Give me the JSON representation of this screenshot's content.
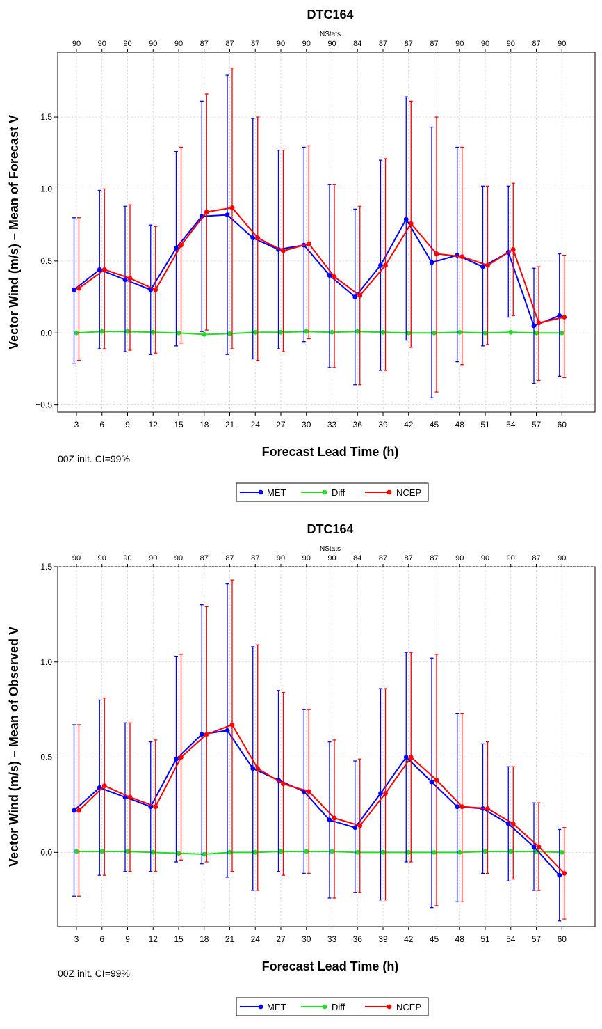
{
  "chart_data": [
    {
      "type": "line",
      "title": "DTC164",
      "xlabel": "Forecast Lead Time (h)",
      "ylabel": "Vector Wind (m/s) – Mean of Forecast V",
      "top_axis_label": "NStats",
      "annotation": "00Z init.  CI=99%",
      "x": [
        3,
        6,
        9,
        12,
        15,
        18,
        21,
        24,
        27,
        30,
        33,
        36,
        39,
        42,
        45,
        48,
        51,
        54,
        57,
        60
      ],
      "nstats": [
        90,
        90,
        90,
        90,
        90,
        87,
        87,
        87,
        90,
        90,
        90,
        84,
        87,
        87,
        87,
        90,
        90,
        90,
        87,
        90
      ],
      "ylim": [
        -0.55,
        1.95
      ],
      "yticks": [
        -0.5,
        0.0,
        0.5,
        1.0,
        1.5
      ],
      "ytick_labels": [
        "−0.5",
        "0.0",
        "0.5",
        "1.0",
        "1.5"
      ],
      "grid": true,
      "legend_position": "bottom-center",
      "series": [
        {
          "name": "MET",
          "color": "#0000ff",
          "values": [
            0.3,
            0.44,
            0.37,
            0.3,
            0.59,
            0.81,
            0.82,
            0.66,
            0.58,
            0.61,
            0.4,
            0.25,
            0.47,
            0.79,
            0.49,
            0.54,
            0.46,
            0.56,
            0.05,
            0.12
          ],
          "lower": [
            -0.21,
            -0.11,
            -0.13,
            -0.15,
            -0.09,
            0.01,
            -0.15,
            -0.18,
            -0.11,
            -0.06,
            -0.24,
            -0.36,
            -0.26,
            -0.05,
            -0.45,
            -0.2,
            -0.09,
            0.11,
            -0.35,
            -0.3
          ],
          "upper": [
            0.8,
            0.99,
            0.88,
            0.75,
            1.26,
            1.61,
            1.79,
            1.49,
            1.27,
            1.29,
            1.03,
            0.86,
            1.2,
            1.64,
            1.43,
            1.29,
            1.02,
            1.02,
            0.45,
            0.55
          ]
        },
        {
          "name": "Diff",
          "color": "#22dd22",
          "values": [
            0.0,
            0.01,
            0.01,
            0.005,
            0.0,
            -0.01,
            -0.005,
            0.005,
            0.005,
            0.01,
            0.005,
            0.01,
            0.005,
            0.0,
            0.0,
            0.005,
            0.0,
            0.005,
            0.0,
            0.0
          ]
        },
        {
          "name": "NCEP",
          "color": "#ff0000",
          "values": [
            0.31,
            0.44,
            0.38,
            0.3,
            0.61,
            0.84,
            0.87,
            0.66,
            0.57,
            0.62,
            0.39,
            0.26,
            0.47,
            0.76,
            0.55,
            0.53,
            0.47,
            0.58,
            0.07,
            0.11
          ],
          "lower": [
            -0.19,
            -0.11,
            -0.12,
            -0.14,
            -0.07,
            0.02,
            -0.11,
            -0.19,
            -0.13,
            -0.04,
            -0.24,
            -0.36,
            -0.26,
            -0.1,
            -0.41,
            -0.22,
            -0.08,
            0.12,
            -0.33,
            -0.31
          ],
          "upper": [
            0.8,
            1.0,
            0.89,
            0.74,
            1.29,
            1.66,
            1.84,
            1.5,
            1.27,
            1.3,
            1.03,
            0.88,
            1.21,
            1.61,
            1.5,
            1.29,
            1.02,
            1.04,
            0.46,
            0.54
          ]
        }
      ]
    },
    {
      "type": "line",
      "title": "DTC164",
      "xlabel": "Forecast Lead Time (h)",
      "ylabel": "Vector Wind (m/s) – Mean of Observed V",
      "top_axis_label": "NStats",
      "annotation": "00Z init.  CI=99%",
      "x": [
        3,
        6,
        9,
        12,
        15,
        18,
        21,
        24,
        27,
        30,
        33,
        36,
        39,
        42,
        45,
        48,
        51,
        54,
        57,
        60
      ],
      "nstats": [
        90,
        90,
        90,
        90,
        90,
        87,
        87,
        87,
        90,
        90,
        90,
        84,
        87,
        87,
        87,
        90,
        90,
        90,
        87,
        90
      ],
      "ylim": [
        -0.39,
        1.5
      ],
      "yticks": [
        0.0,
        0.5,
        1.0,
        1.5
      ],
      "ytick_labels": [
        "0.0",
        "0.5",
        "1.0",
        "1.5"
      ],
      "grid": true,
      "legend_position": "bottom-center",
      "series": [
        {
          "name": "MET",
          "color": "#0000ff",
          "values": [
            0.22,
            0.34,
            0.29,
            0.24,
            0.49,
            0.62,
            0.64,
            0.44,
            0.38,
            0.32,
            0.17,
            0.13,
            0.31,
            0.5,
            0.37,
            0.24,
            0.23,
            0.15,
            0.03,
            -0.12
          ],
          "lower": [
            -0.23,
            -0.12,
            -0.1,
            -0.1,
            -0.05,
            -0.06,
            -0.13,
            -0.2,
            -0.1,
            -0.11,
            -0.24,
            -0.21,
            -0.25,
            -0.05,
            -0.29,
            -0.26,
            -0.11,
            -0.15,
            -0.2,
            -0.36
          ],
          "upper": [
            0.67,
            0.8,
            0.68,
            0.58,
            1.03,
            1.3,
            1.41,
            1.08,
            0.85,
            0.75,
            0.58,
            0.48,
            0.86,
            1.05,
            1.02,
            0.73,
            0.57,
            0.45,
            0.26,
            0.12
          ]
        },
        {
          "name": "Diff",
          "color": "#22dd22",
          "values": [
            0.005,
            0.005,
            0.005,
            0.0,
            -0.005,
            -0.01,
            0.0,
            0.0,
            0.005,
            0.005,
            0.005,
            0.0,
            0.0,
            0.0,
            0.0,
            0.0,
            0.005,
            0.005,
            0.005,
            0.0
          ]
        },
        {
          "name": "NCEP",
          "color": "#ff0000",
          "values": [
            0.22,
            0.35,
            0.29,
            0.24,
            0.5,
            0.62,
            0.67,
            0.44,
            0.36,
            0.32,
            0.18,
            0.14,
            0.31,
            0.5,
            0.38,
            0.24,
            0.23,
            0.15,
            0.03,
            -0.11
          ],
          "lower": [
            -0.23,
            -0.12,
            -0.1,
            -0.1,
            -0.04,
            -0.05,
            -0.1,
            -0.2,
            -0.12,
            -0.11,
            -0.24,
            -0.21,
            -0.25,
            -0.05,
            -0.28,
            -0.26,
            -0.11,
            -0.14,
            -0.2,
            -0.35
          ],
          "upper": [
            0.67,
            0.81,
            0.68,
            0.59,
            1.04,
            1.29,
            1.43,
            1.09,
            0.84,
            0.75,
            0.59,
            0.49,
            0.86,
            1.05,
            1.04,
            0.73,
            0.58,
            0.45,
            0.26,
            0.13
          ]
        }
      ]
    }
  ]
}
